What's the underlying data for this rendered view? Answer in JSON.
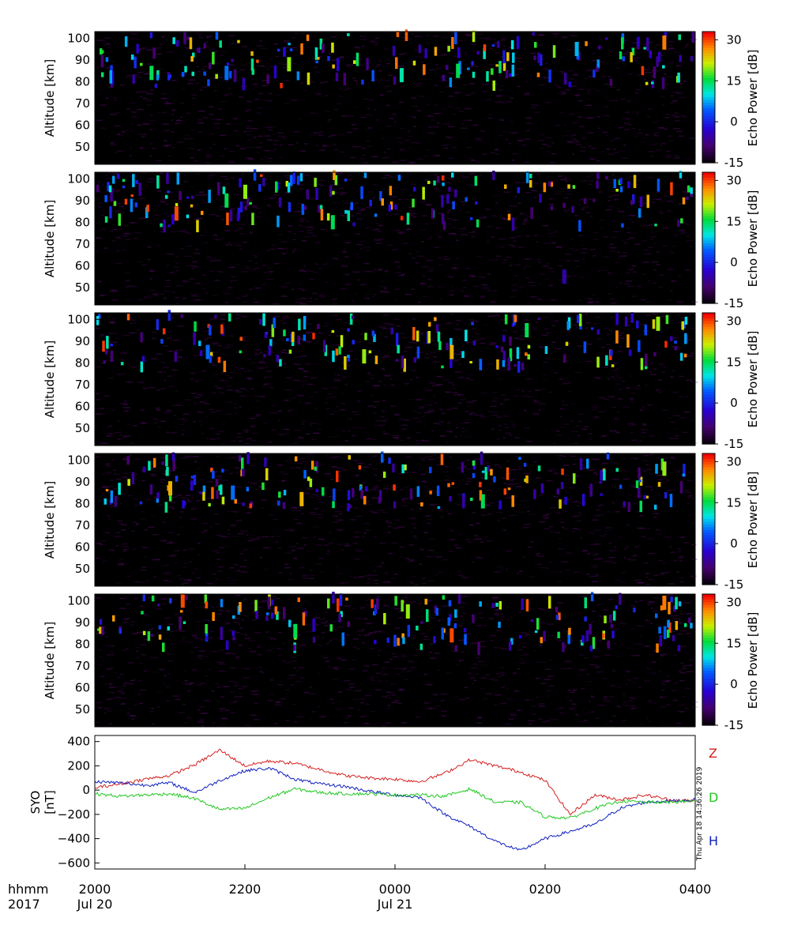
{
  "panels": [
    {
      "ylabel": "Altitude [km]",
      "yticks": [
        "50",
        "60",
        "70",
        "80",
        "90",
        "100"
      ],
      "cbar_label": "Echo Power [dB]",
      "cbar_ticks": [
        "30",
        "15",
        "0",
        "-15"
      ]
    },
    {
      "ylabel": "Altitude [km]",
      "yticks": [
        "50",
        "60",
        "70",
        "80",
        "90",
        "100"
      ],
      "cbar_label": "Echo Power [dB]",
      "cbar_ticks": [
        "30",
        "15",
        "0",
        "-15"
      ]
    },
    {
      "ylabel": "Altitude [km]",
      "yticks": [
        "50",
        "60",
        "70",
        "80",
        "90",
        "100"
      ],
      "cbar_label": "Echo Power [dB]",
      "cbar_ticks": [
        "30",
        "15",
        "0",
        "-15"
      ]
    },
    {
      "ylabel": "Altitude [km]",
      "yticks": [
        "50",
        "60",
        "70",
        "80",
        "90",
        "100"
      ],
      "cbar_label": "Echo Power [dB]",
      "cbar_ticks": [
        "30",
        "15",
        "0",
        "-15"
      ]
    },
    {
      "ylabel": "Altitude [km]",
      "yticks": [
        "50",
        "60",
        "70",
        "80",
        "90",
        "100"
      ],
      "cbar_label": "Echo Power [dB]",
      "cbar_ticks": [
        "30",
        "15",
        "0",
        "-15"
      ]
    }
  ],
  "mag": {
    "ylabel_line1": "SYO",
    "ylabel_line2": "[nT]",
    "yticks": [
      "400",
      "200",
      "0",
      "−200",
      "−400",
      "−600"
    ],
    "timestamp": "Thu Apr 18 14:36:26 2019"
  },
  "xaxis": {
    "hhmm_label": "hhmm",
    "year_label": "2017",
    "ticks": [
      "2000",
      "2200",
      "0000",
      "0200",
      "0400"
    ],
    "date_labels": [
      "Jul 20",
      "Jul 21"
    ]
  },
  "colors": {
    "Z": "#d42020",
    "H": "#1020c0",
    "D": "#20c820",
    "background_plot": "#000000"
  },
  "chart_data": [
    {
      "type": "heatmap",
      "panel": 1,
      "xlabel": "",
      "ylabel": "Altitude [km]",
      "x_range": [
        "2017-07-20 20:00",
        "2017-07-21 04:00"
      ],
      "ylim": [
        42,
        103
      ],
      "colorbar": {
        "label": "Echo Power [dB]",
        "range": [
          -15,
          33
        ],
        "ticks": [
          30,
          15,
          0,
          -15
        ]
      },
      "echo_features": [
        {
          "time": "20:45",
          "alt_km": 84,
          "dB": 15
        },
        {
          "time": "21:45",
          "alt_km": 84,
          "dB": 5
        },
        {
          "time": "22:35",
          "alt_km": 88,
          "dB": 20
        },
        {
          "time": "00:05",
          "alt_km": 83,
          "dB": 12
        },
        {
          "time": "00:50",
          "alt_km": 85,
          "dB": 15
        },
        {
          "time": "02:25",
          "alt_km": 95,
          "dB": 8
        },
        {
          "time": "03:35",
          "alt_km": 98,
          "dB": 28
        }
      ]
    },
    {
      "type": "heatmap",
      "panel": 2,
      "xlabel": "",
      "ylabel": "Altitude [km]",
      "x_range": [
        "2017-07-20 20:00",
        "2017-07-21 04:00"
      ],
      "ylim": [
        42,
        103
      ],
      "colorbar": {
        "label": "Echo Power [dB]",
        "range": [
          -15,
          33
        ],
        "ticks": [
          30,
          15,
          0,
          -15
        ]
      },
      "echo_features": [
        {
          "time": "21:05",
          "alt_km": 84,
          "dB": 30
        },
        {
          "time": "21:45",
          "alt_km": 90,
          "dB": 15
        },
        {
          "time": "22:00",
          "alt_km": 94,
          "dB": 20
        },
        {
          "time": "23:10",
          "alt_km": 80,
          "dB": 15
        },
        {
          "time": "02:15",
          "alt_km": 55,
          "dB": -5
        }
      ]
    },
    {
      "type": "heatmap",
      "panel": 3,
      "xlabel": "",
      "ylabel": "Altitude [km]",
      "x_range": [
        "2017-07-20 20:00",
        "2017-07-21 04:00"
      ],
      "ylim": [
        42,
        103
      ],
      "colorbar": {
        "label": "Echo Power [dB]",
        "range": [
          -15,
          33
        ],
        "ticks": [
          30,
          15,
          0,
          -15
        ]
      },
      "echo_features": [
        {
          "time": "21:30",
          "alt_km": 85,
          "dB": 5
        },
        {
          "time": "23:35",
          "alt_km": 83,
          "dB": 20
        },
        {
          "time": "00:45",
          "alt_km": 85,
          "dB": 25
        },
        {
          "time": "01:45",
          "alt_km": 95,
          "dB": 15
        },
        {
          "time": "03:30",
          "alt_km": 98,
          "dB": 20
        }
      ]
    },
    {
      "type": "heatmap",
      "panel": 4,
      "xlabel": "",
      "ylabel": "Altitude [km]",
      "x_range": [
        "2017-07-20 20:00",
        "2017-07-21 04:00"
      ],
      "ylim": [
        42,
        103
      ],
      "colorbar": {
        "label": "Echo Power [dB]",
        "range": [
          -15,
          33
        ],
        "ticks": [
          30,
          15,
          0,
          -15
        ]
      },
      "echo_features": [
        {
          "time": "21:50",
          "alt_km": 85,
          "dB": 5
        },
        {
          "time": "21:00",
          "alt_km": 87,
          "dB": 25
        },
        {
          "time": "22:45",
          "alt_km": 82,
          "dB": 25
        },
        {
          "time": "01:10",
          "alt_km": 81,
          "dB": 15
        },
        {
          "time": "03:35",
          "alt_km": 96,
          "dB": 20
        }
      ]
    },
    {
      "type": "heatmap",
      "panel": 5,
      "xlabel": "",
      "ylabel": "Altitude [km]",
      "x_range": [
        "2017-07-20 20:00",
        "2017-07-21 04:00"
      ],
      "ylim": [
        42,
        103
      ],
      "colorbar": {
        "label": "Echo Power [dB]",
        "range": [
          -15,
          33
        ],
        "ticks": [
          30,
          15,
          0,
          -15
        ]
      },
      "echo_features": [
        {
          "time": "21:10",
          "alt_km": 100,
          "dB": 30
        },
        {
          "time": "22:40",
          "alt_km": 86,
          "dB": 15
        },
        {
          "time": "00:10",
          "alt_km": 95,
          "dB": 20
        },
        {
          "time": "00:45",
          "alt_km": 84,
          "dB": 30
        },
        {
          "time": "03:35",
          "alt_km": 99,
          "dB": 28
        }
      ]
    },
    {
      "type": "line",
      "panel": 6,
      "xlabel": "",
      "ylabel": "SYO [nT]",
      "ylim": [
        -650,
        450
      ],
      "x": [
        "20:00",
        "20:20",
        "20:40",
        "21:00",
        "21:20",
        "21:40",
        "22:00",
        "22:20",
        "22:40",
        "23:00",
        "23:20",
        "23:40",
        "00:00",
        "00:20",
        "00:40",
        "01:00",
        "01:20",
        "01:40",
        "02:00",
        "02:20",
        "02:40",
        "03:00",
        "03:20",
        "03:40",
        "04:00"
      ],
      "series": [
        {
          "name": "Z",
          "color": "#d42020",
          "values": [
            20,
            50,
            90,
            120,
            210,
            330,
            200,
            240,
            220,
            170,
            120,
            100,
            90,
            70,
            140,
            250,
            200,
            150,
            80,
            -200,
            -40,
            -80,
            -40,
            -80,
            -90
          ]
        },
        {
          "name": "H",
          "color": "#1020c0",
          "values": [
            70,
            60,
            40,
            60,
            -20,
            80,
            160,
            180,
            90,
            50,
            30,
            -10,
            -40,
            -60,
            -200,
            -300,
            -420,
            -500,
            -400,
            -340,
            -280,
            -150,
            -100,
            -90,
            -80
          ]
        },
        {
          "name": "D",
          "color": "#20c820",
          "values": [
            -30,
            -50,
            -40,
            -30,
            -70,
            -160,
            -150,
            -60,
            10,
            -20,
            -30,
            -30,
            -40,
            -40,
            -50,
            10,
            -100,
            -100,
            -220,
            -230,
            -150,
            -90,
            -100,
            -100,
            -90
          ]
        }
      ]
    }
  ]
}
